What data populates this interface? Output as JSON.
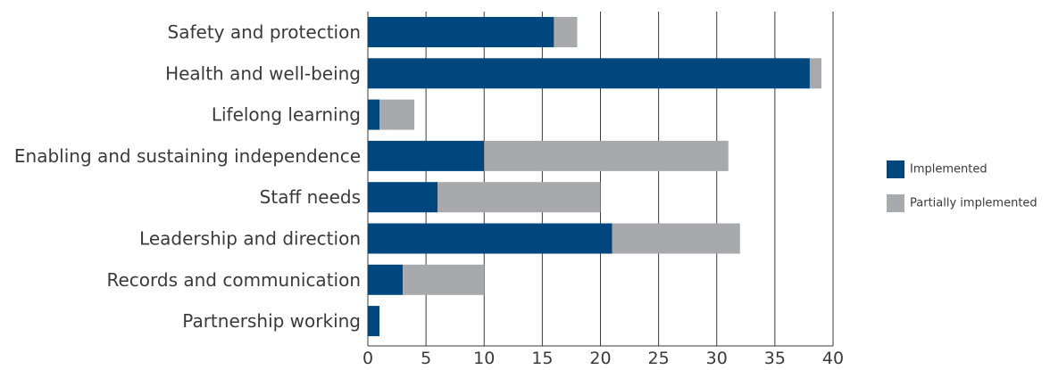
{
  "chart_data": {
    "type": "bar",
    "orientation": "horizontal",
    "stacked": true,
    "categories": [
      "Safety and protection",
      "Health and well-being",
      "Lifelong learning",
      "Enabling and sustaining independence",
      "Staff needs",
      "Leadership and direction",
      "Records and communication",
      "Partnership working"
    ],
    "series": [
      {
        "name": "Implemented",
        "color": "#00467f",
        "values": [
          16,
          38,
          1,
          10,
          6,
          21,
          3,
          1
        ]
      },
      {
        "name": "Partially implemented",
        "color": "#a7a9ac",
        "values": [
          2,
          1,
          3,
          21,
          14,
          11,
          7,
          0
        ]
      }
    ],
    "xlim": [
      0,
      40
    ],
    "xticks": [
      0,
      5,
      10,
      15,
      20,
      25,
      30,
      35,
      40
    ],
    "grid": "vertical",
    "legend_position": "right",
    "title": "",
    "xlabel": "",
    "ylabel": ""
  }
}
